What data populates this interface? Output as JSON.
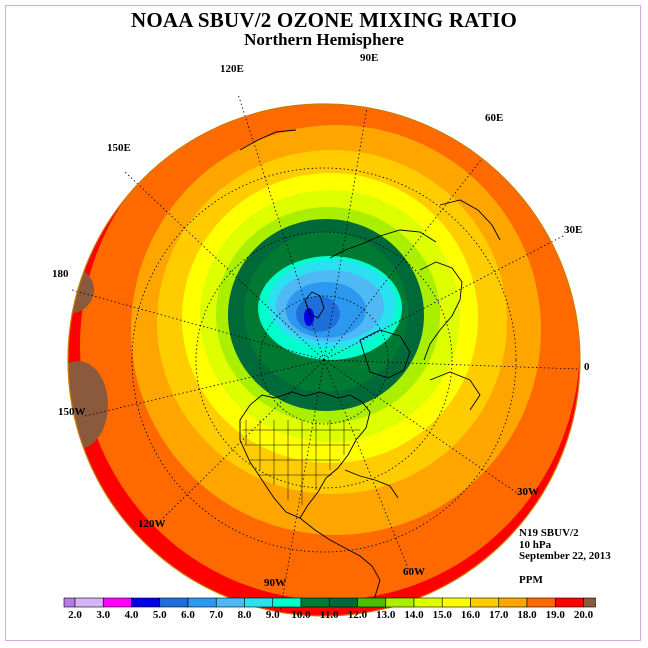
{
  "title": "NOAA SBUV/2 OZONE MIXING RATIO",
  "subtitle": "Northern Hemisphere",
  "longitude_labels": [
    "90E",
    "60E",
    "30E",
    "0",
    "30W",
    "60W",
    "90W",
    "120W",
    "150W",
    "180",
    "150E",
    "120E"
  ],
  "info": {
    "instrument": "N19 SBUV/2",
    "level": "10 hPa",
    "date": "September 22, 2013",
    "units": "PPM"
  },
  "colorbar": {
    "tick_labels": [
      "2.0",
      "3.0",
      "4.0",
      "5.0",
      "6.0",
      "7.0",
      "8.0",
      "9.0",
      "10.0",
      "11.0",
      "12.0",
      "13.0",
      "14.0",
      "15.0",
      "16.0",
      "17.0",
      "18.0",
      "19.0",
      "20.0"
    ],
    "colors": [
      "#b57be6",
      "#d6b3f5",
      "#ff00ff",
      "#0000e6",
      "#1e6fd9",
      "#2d98f0",
      "#4fb9f5",
      "#2be0f0",
      "#00ffcc",
      "#007a33",
      "#00693a",
      "#4bbf00",
      "#aaee00",
      "#ddff00",
      "#ffff00",
      "#ffcc00",
      "#ffa500",
      "#ff6a00",
      "#ff0000",
      "#8b5a3c"
    ]
  },
  "map_colors": {
    "ocean_ring": "#ffa500",
    "disk_edge": "#cc7a00",
    "coastline": "#000000"
  }
}
